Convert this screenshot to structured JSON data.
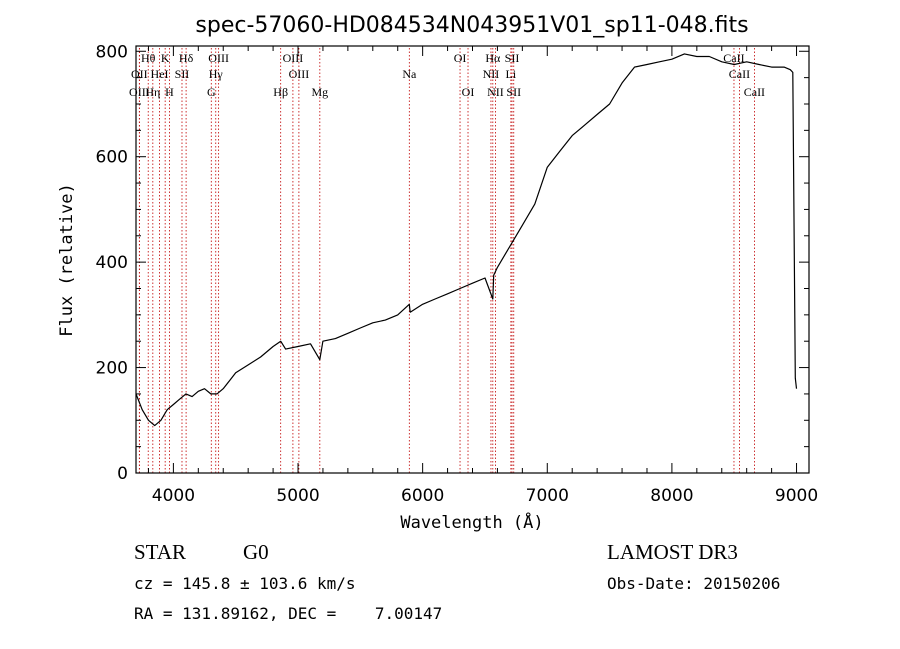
{
  "chart_data": {
    "type": "line",
    "title": "spec-57060-HD084534N043951V01_sp11-048.fits",
    "xlabel": "Wavelength (Å)",
    "ylabel": "Flux (relative)",
    "xlim": [
      3700,
      9100
    ],
    "ylim": [
      0,
      810
    ],
    "x_ticks": [
      4000,
      5000,
      6000,
      7000,
      8000,
      9000
    ],
    "y_ticks": [
      0,
      200,
      400,
      600,
      800
    ],
    "series": [
      {
        "name": "flux",
        "color": "#000000",
        "x": [
          3700,
          3750,
          3800,
          3850,
          3900,
          3950,
          4000,
          4050,
          4100,
          4150,
          4200,
          4250,
          4300,
          4350,
          4400,
          4450,
          4500,
          4600,
          4700,
          4800,
          4861,
          4900,
          5000,
          5100,
          5175,
          5200,
          5300,
          5400,
          5500,
          5600,
          5700,
          5800,
          5893,
          5900,
          6000,
          6100,
          6200,
          6300,
          6400,
          6500,
          6563,
          6570,
          6600,
          6700,
          6800,
          6900,
          7000,
          7100,
          7200,
          7300,
          7400,
          7500,
          7600,
          7700,
          7800,
          7900,
          8000,
          8100,
          8200,
          8300,
          8400,
          8500,
          8600,
          8700,
          8800,
          8900,
          8950,
          8970,
          8990,
          9000
        ],
        "y": [
          150,
          120,
          100,
          90,
          100,
          120,
          130,
          140,
          150,
          145,
          155,
          160,
          150,
          150,
          160,
          175,
          190,
          205,
          220,
          240,
          250,
          235,
          240,
          245,
          215,
          250,
          255,
          265,
          275,
          285,
          290,
          300,
          320,
          305,
          320,
          330,
          340,
          350,
          360,
          370,
          330,
          375,
          390,
          430,
          470,
          510,
          580,
          610,
          640,
          660,
          680,
          700,
          740,
          770,
          775,
          780,
          785,
          795,
          790,
          790,
          780,
          775,
          780,
          775,
          770,
          770,
          765,
          760,
          180,
          160
        ]
      }
    ],
    "spectral_lines": [
      {
        "label": "Hθ",
        "wavelength": 3798,
        "row": 1
      },
      {
        "label": "OII",
        "wavelength": 3727,
        "row": 2
      },
      {
        "label": "OIII",
        "wavelength": 3727,
        "row": 3
      },
      {
        "label": "HeI",
        "wavelength": 3889,
        "row": 2
      },
      {
        "label": "Hη",
        "wavelength": 3835,
        "row": 3
      },
      {
        "label": "K",
        "wavelength": 3934,
        "row": 1
      },
      {
        "label": "SII",
        "wavelength": 4069,
        "row": 2
      },
      {
        "label": "H",
        "wavelength": 3968,
        "row": 3
      },
      {
        "label": "Hδ",
        "wavelength": 4102,
        "row": 1
      },
      {
        "label": "OIII",
        "wavelength": 4363,
        "row": 1
      },
      {
        "label": "Hγ",
        "wavelength": 4340,
        "row": 2
      },
      {
        "label": "G",
        "wavelength": 4304,
        "row": 3
      },
      {
        "label": "OIII",
        "wavelength": 4959,
        "row": 1
      },
      {
        "label": "OIII",
        "wavelength": 5007,
        "row": 2
      },
      {
        "label": "Hβ",
        "wavelength": 4861,
        "row": 3
      },
      {
        "label": "Mg",
        "wavelength": 5175,
        "row": 3
      },
      {
        "label": "Na",
        "wavelength": 5893,
        "row": 2
      },
      {
        "label": "OI",
        "wavelength": 6300,
        "row": 1
      },
      {
        "label": "OI",
        "wavelength": 6364,
        "row": 3
      },
      {
        "label": "Hα",
        "wavelength": 6563,
        "row": 1
      },
      {
        "label": "NII",
        "wavelength": 6548,
        "row": 2
      },
      {
        "label": "NII",
        "wavelength": 6584,
        "row": 3
      },
      {
        "label": "SII",
        "wavelength": 6717,
        "row": 1
      },
      {
        "label": "Li",
        "wavelength": 6708,
        "row": 2
      },
      {
        "label": "SII",
        "wavelength": 6731,
        "row": 3
      },
      {
        "label": "CaII",
        "wavelength": 8498,
        "row": 1
      },
      {
        "label": "CaII",
        "wavelength": 8542,
        "row": 2
      },
      {
        "label": "CaII",
        "wavelength": 8662,
        "row": 3
      }
    ]
  },
  "info": {
    "class": "STAR",
    "subclass": "G0",
    "survey": "LAMOST DR3",
    "cz": "cz = 145.8 ± 103.6 km/s",
    "obs_date": "Obs-Date: 20150206",
    "coords": "RA = 131.89162, DEC =    7.00147"
  }
}
